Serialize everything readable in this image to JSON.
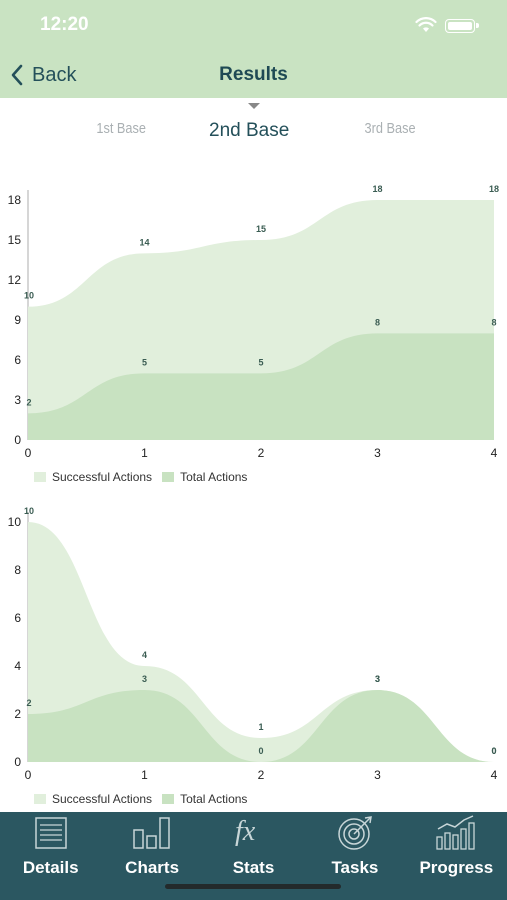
{
  "status": {
    "time": "12:20"
  },
  "nav": {
    "back_label": "Back",
    "title": "Results"
  },
  "segments": [
    {
      "label": "1st Base",
      "active": false
    },
    {
      "label": "2nd Base",
      "active": true
    },
    {
      "label": "3rd Base",
      "active": false
    }
  ],
  "colors": {
    "header": "#c9e3c2",
    "tabbar": "#2b5761",
    "successful": "#e1efdc",
    "total": "#c8e2c1",
    "label": "#3a5c52"
  },
  "chart_data": [
    {
      "type": "area",
      "x": [
        0,
        1,
        2,
        3,
        4
      ],
      "series": [
        {
          "name": "Successful Actions",
          "values": [
            10,
            14,
            15,
            18,
            18
          ]
        },
        {
          "name": "Total Actions",
          "values": [
            2,
            5,
            5,
            8,
            8
          ]
        }
      ],
      "yticks": [
        0,
        3,
        6,
        9,
        12,
        15,
        18
      ],
      "ylim": [
        0,
        18
      ],
      "xlim": [
        0,
        4
      ],
      "legend": "bottom-left"
    },
    {
      "type": "area",
      "x": [
        0,
        1,
        2,
        3,
        4
      ],
      "series": [
        {
          "name": "Successful Actions",
          "values": [
            10,
            4,
            1,
            3,
            0
          ]
        },
        {
          "name": "Total Actions",
          "values": [
            2,
            3,
            0,
            3,
            0
          ]
        }
      ],
      "yticks": [
        0,
        2,
        4,
        6,
        8,
        10
      ],
      "ylim": [
        0,
        10
      ],
      "xlim": [
        0,
        4
      ],
      "legend": "bottom-left"
    }
  ],
  "tabs": [
    {
      "label": "Details",
      "icon": "details-icon"
    },
    {
      "label": "Charts",
      "icon": "charts-icon"
    },
    {
      "label": "Stats",
      "icon": "fx-icon"
    },
    {
      "label": "Tasks",
      "icon": "target-icon"
    },
    {
      "label": "Progress",
      "icon": "progress-icon"
    }
  ]
}
